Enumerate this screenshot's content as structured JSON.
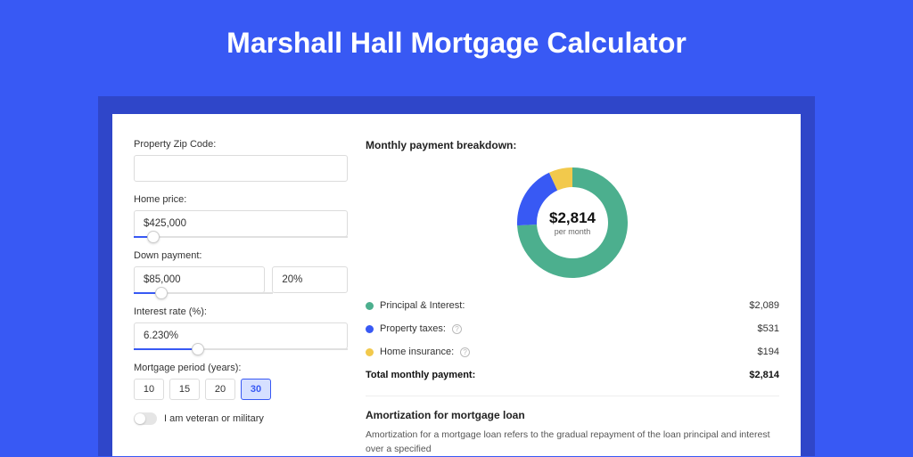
{
  "title": "Marshall Hall Mortgage Calculator",
  "colors": {
    "page_bg": "#3859f4",
    "shadow_bg": "#2f46c9",
    "card_bg": "#ffffff",
    "accent": "#3859f4"
  },
  "form": {
    "zip": {
      "label": "Property Zip Code:",
      "value": ""
    },
    "home_price": {
      "label": "Home price:",
      "value": "$425,000",
      "slider_percent": 9
    },
    "down_payment": {
      "label": "Down payment:",
      "value": "$85,000",
      "percent_value": "20%",
      "slider_percent": 20
    },
    "interest_rate": {
      "label": "Interest rate (%):",
      "value": "6.230%",
      "slider_percent": 30
    },
    "mortgage_period": {
      "label": "Mortgage period (years):",
      "options": [
        "10",
        "15",
        "20",
        "30"
      ],
      "active_index": 3
    },
    "veteran": {
      "label": "I am veteran or military",
      "checked": false
    }
  },
  "breakdown": {
    "heading": "Monthly payment breakdown:",
    "donut": {
      "type": "donut",
      "amount": "$2,814",
      "subtext": "per month",
      "slices": [
        {
          "key": "principal_interest",
          "percent": 74.2,
          "color": "#4caf8e"
        },
        {
          "key": "property_taxes",
          "percent": 18.9,
          "color": "#3859f4"
        },
        {
          "key": "home_insurance",
          "percent": 6.9,
          "color": "#f2c94c"
        }
      ],
      "inner_radius": 40,
      "outer_radius": 62,
      "background_color": "#ffffff"
    },
    "items": [
      {
        "label": "Principal & Interest:",
        "value": "$2,089",
        "color": "#4caf8e",
        "help": false
      },
      {
        "label": "Property taxes:",
        "value": "$531",
        "color": "#3859f4",
        "help": true
      },
      {
        "label": "Home insurance:",
        "value": "$194",
        "color": "#f2c94c",
        "help": true
      }
    ],
    "total": {
      "label": "Total monthly payment:",
      "value": "$2,814"
    }
  },
  "amortization": {
    "heading": "Amortization for mortgage loan",
    "text": "Amortization for a mortgage loan refers to the gradual repayment of the loan principal and interest over a specified"
  }
}
